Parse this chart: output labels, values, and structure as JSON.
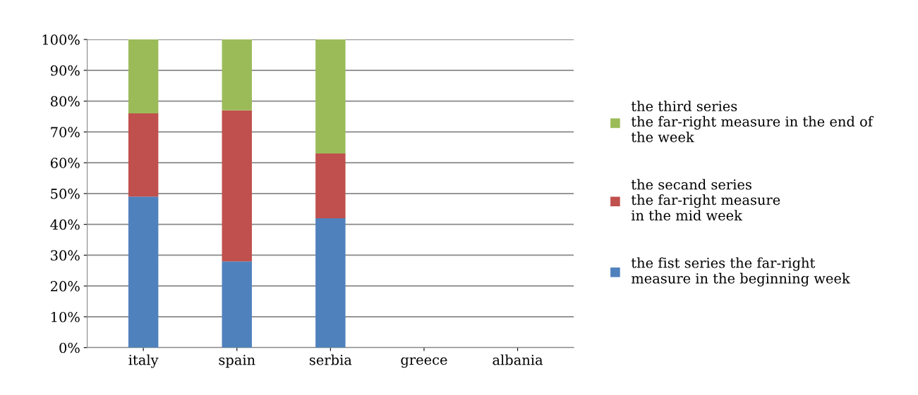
{
  "chart_data": {
    "type": "bar",
    "stacked": true,
    "categories": [
      "italy",
      "spain",
      "serbia",
      "greece",
      "albania"
    ],
    "series": [
      {
        "name": "the fist series the far-right\nmeasure in the beginning week",
        "color": "#4f81bd",
        "values": [
          49,
          28,
          42,
          0,
          0
        ]
      },
      {
        "name": "the secand series\nthe far-right measure\nin the mid week",
        "color": "#c0504d",
        "values": [
          27,
          49,
          21,
          0,
          0
        ]
      },
      {
        "name": "the third series\nthe far-right measure in the end of\nthe week",
        "color": "#9bbb59",
        "values": [
          24,
          23,
          37,
          0,
          0
        ]
      }
    ],
    "ylim": [
      0,
      100
    ],
    "yticks": [
      {
        "value": 0,
        "label": "0%"
      },
      {
        "value": 10,
        "label": "10%"
      },
      {
        "value": 20,
        "label": "20%"
      },
      {
        "value": 30,
        "label": "30%"
      },
      {
        "value": 40,
        "label": "40%"
      },
      {
        "value": 50,
        "label": "50%"
      },
      {
        "value": 60,
        "label": "60%"
      },
      {
        "value": 70,
        "label": "70%"
      },
      {
        "value": 80,
        "label": "80%"
      },
      {
        "value": 90,
        "label": "90%"
      },
      {
        "value": 100,
        "label": "100%"
      }
    ],
    "grid": "y",
    "legend": "right"
  }
}
